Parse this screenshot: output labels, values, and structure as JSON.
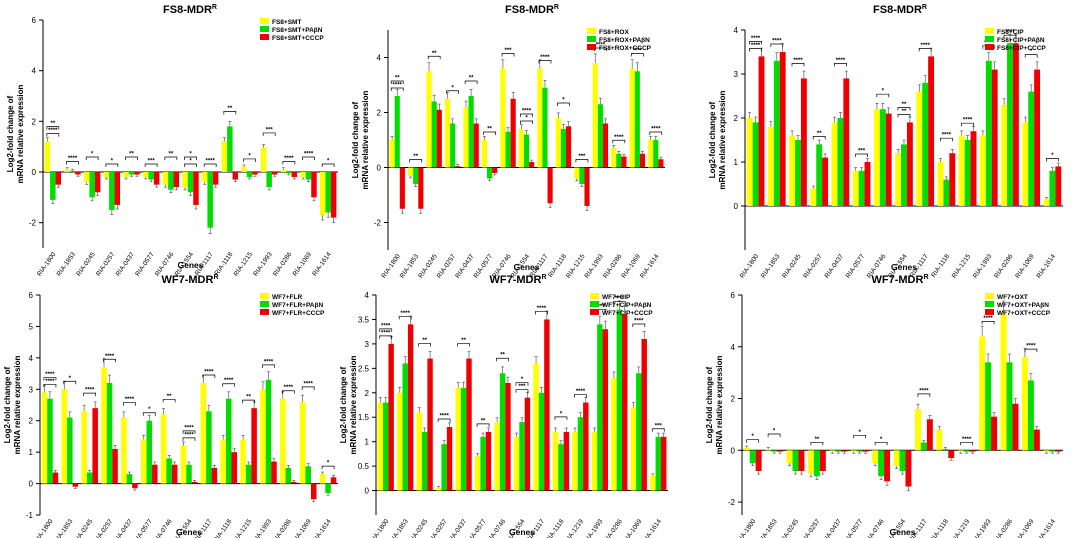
{
  "figure": {
    "panel_count": 6,
    "colors": {
      "yellow": "#FFFF00",
      "green": "#00DD00",
      "red": "#EE0000",
      "axis": "#000000"
    }
  },
  "chart_data": [
    {
      "type": "bar",
      "title": "FS8-MDR",
      "title_superscript": "R",
      "ylabel": [
        "Log2-fold change of",
        "mRNA relative expression"
      ],
      "xlabel": "Genes",
      "ylim": [
        -3,
        6
      ],
      "yticks": [
        -2,
        0,
        2,
        4,
        6
      ],
      "legend": "top-right",
      "categories": [
        "RIA-1800",
        "RIA-1853",
        "RIA-0245",
        "RIA-0257",
        "RIA-0437",
        "RIA-0577",
        "RIA-0746",
        "RIA-1554",
        "RIA-1117",
        "RIA-1118",
        "RIA-1215",
        "RIA-1993",
        "RIA-0286",
        "RIA-1069",
        "RIA-1614"
      ],
      "series": [
        {
          "name": "FS8+SMT",
          "values": [
            1.2,
            0.1,
            -0.4,
            -0.2,
            -0.2,
            -0.2,
            -0.5,
            -0.6,
            -0.4,
            1.2,
            0.2,
            0.95,
            0.1,
            -0.2,
            -1.7
          ]
        },
        {
          "name": "FS8+SMT+PAβN",
          "values": [
            -1.1,
            0.05,
            -1.0,
            -1.5,
            -0.1,
            -0.3,
            -0.7,
            -0.8,
            -2.2,
            1.8,
            -0.2,
            -0.6,
            -0.05,
            -0.3,
            -1.6
          ]
        },
        {
          "name": "FS8+SMT+CCCP",
          "values": [
            -0.5,
            -0.1,
            -0.8,
            -1.3,
            -0.1,
            -0.5,
            -0.6,
            -1.3,
            -0.5,
            -0.3,
            -0.1,
            -0.1,
            -0.2,
            -1.0,
            -1.8
          ]
        }
      ],
      "annotations": [
        "****",
        "**",
        "****",
        "*",
        "*",
        "**",
        "***",
        "**",
        "*",
        "*",
        "****",
        "**",
        "*",
        "***",
        "****",
        "****",
        "*"
      ]
    },
    {
      "type": "bar",
      "title": "FS8-MDR",
      "title_superscript": "R",
      "ylabel": [
        "Log2-fold change of",
        "mRNA relative expression"
      ],
      "xlabel": "Genes",
      "ylim": [
        -3,
        5
      ],
      "yticks": [
        -2,
        0,
        2,
        4
      ],
      "legend": "top-right",
      "categories": [
        "RIA-1800",
        "RIA-1853",
        "RIA-0245",
        "RIA-0257",
        "RIA-0437",
        "RIA-0577",
        "RIA-0746",
        "RIA-1554",
        "RIA-1117",
        "RIA-1118",
        "RIA-1215",
        "RIA-1993",
        "RIA-0286",
        "RIA-1069",
        "RIA-1614"
      ],
      "series": [
        {
          "name": "FS8+ROX",
          "values": [
            1.0,
            -0.3,
            3.5,
            2.5,
            2.2,
            1.0,
            3.6,
            1.4,
            3.6,
            1.8,
            -0.4,
            3.8,
            0.7,
            3.6,
            1.0
          ]
        },
        {
          "name": "FS8+ROX+PAβN",
          "values": [
            2.6,
            -0.6,
            2.4,
            1.6,
            2.6,
            -0.4,
            1.3,
            1.2,
            2.9,
            1.4,
            -0.6,
            2.3,
            0.5,
            3.5,
            1.0
          ]
        },
        {
          "name": "FS8+ROX+CCCP",
          "values": [
            -1.5,
            -1.5,
            2.1,
            0.05,
            1.6,
            -0.2,
            2.5,
            0.2,
            -1.3,
            1.5,
            -1.4,
            1.6,
            0.4,
            0.5,
            0.3
          ]
        }
      ],
      "annotations": [
        "****",
        "**",
        "**",
        "**",
        "*",
        "**",
        "**",
        "***",
        "*",
        "****",
        "****",
        "*",
        "***",
        "****",
        "****",
        "****",
        "****"
      ]
    },
    {
      "type": "bar",
      "title": "FS8-MDR",
      "title_superscript": "R",
      "ylabel": [
        "Log2-fold change of",
        "mRNA relative expression"
      ],
      "xlabel": "Genes",
      "ylim": [
        -1,
        4
      ],
      "yticks": [
        0,
        1,
        2,
        3,
        4
      ],
      "legend": "top-right",
      "categories": [
        "RIA-1800",
        "RIA-1853",
        "RIA-0245",
        "RIA-0257",
        "RIA-0437",
        "RIA-0577",
        "RIA-0746",
        "RIA-1554",
        "RIA-1117",
        "RIA-1118",
        "RIA-1215",
        "RIA-1993",
        "RIA-0286",
        "RIA-1069",
        "RIA-1614"
      ],
      "series": [
        {
          "name": "FS8+CIP",
          "values": [
            2.0,
            1.8,
            1.6,
            0.4,
            1.9,
            0.8,
            2.2,
            1.2,
            2.6,
            1.0,
            1.6,
            1.6,
            2.3,
            1.9,
            0.15
          ]
        },
        {
          "name": "FS8+CIP+PAβN",
          "values": [
            1.9,
            3.3,
            1.5,
            1.4,
            2.0,
            0.8,
            2.2,
            1.4,
            2.8,
            0.6,
            1.5,
            3.3,
            3.7,
            2.6,
            0.8
          ]
        },
        {
          "name": "FS8+CIP+CCCP",
          "values": [
            3.4,
            3.5,
            2.9,
            1.1,
            2.9,
            1.0,
            2.1,
            1.9,
            3.4,
            1.2,
            1.7,
            3.1,
            3.7,
            3.1,
            0.9
          ]
        }
      ],
      "annotations": [
        "****",
        "****",
        "****",
        "****",
        "**",
        "****",
        "***",
        "*",
        "**",
        "**",
        "****",
        "****",
        "****",
        "****",
        "****",
        "*",
        "*"
      ]
    },
    {
      "type": "bar",
      "title": "WF7-MDR",
      "title_superscript": "R",
      "ylabel": [
        "Log2-fold change of",
        "mRNA relative expression"
      ],
      "xlabel": "Genes",
      "ylim": [
        -1,
        6
      ],
      "yticks": [
        -1,
        0,
        1,
        2,
        3,
        4,
        5,
        6
      ],
      "legend": "top-right",
      "categories": [
        "RIA-1800",
        "RIA-1853",
        "RIA-0245",
        "RIA-0257",
        "RIA-0437",
        "RIA-0577",
        "RIA-0746",
        "RIA-1554",
        "RIA-1117",
        "RIA-1118",
        "RIA-1215",
        "RIA-1993",
        "RIA-0286",
        "RIA-1069",
        "RIA-1614"
      ],
      "series": [
        {
          "name": "WF7+FLR",
          "values": [
            2.9,
            3.0,
            2.3,
            3.7,
            2.1,
            1.4,
            2.2,
            1.2,
            3.2,
            1.4,
            1.4,
            3.0,
            2.7,
            2.6,
            0.3
          ]
        },
        {
          "name": "WF7+FLR+PAβN",
          "values": [
            2.7,
            2.1,
            0.35,
            3.2,
            0.3,
            2.0,
            0.8,
            0.6,
            2.3,
            2.7,
            0.6,
            3.3,
            0.5,
            0.55,
            -0.3
          ]
        },
        {
          "name": "WF7+FLR+CCCP",
          "values": [
            0.35,
            -0.1,
            2.4,
            1.1,
            -0.15,
            0.6,
            0.6,
            0.05,
            0.5,
            1.0,
            2.4,
            0.7,
            0.05,
            -0.5,
            0.2
          ]
        }
      ],
      "annotations": [
        "****",
        "****",
        "*",
        "****",
        "****",
        "****",
        "*",
        "**",
        "****",
        "****",
        "****",
        "****",
        "**",
        "****",
        "****",
        "****",
        "*"
      ]
    },
    {
      "type": "bar",
      "title": "WF7-MDR",
      "title_superscript": "R",
      "ylabel": [
        "Log2-fold change of",
        "mRNA relative expression"
      ],
      "xlabel": "Genes",
      "ylim": [
        -0.5,
        4
      ],
      "yticks": [
        0,
        0.5,
        1,
        1.5,
        2,
        2.5,
        3,
        3.5,
        4
      ],
      "legend": "top-right",
      "categories": [
        "RIA-1800",
        "RIA-1853",
        "RIA-0245",
        "RIA-0257",
        "RIA-0437",
        "RIA-0577",
        "RIA-0746",
        "RIA-1554",
        "RIA-1117",
        "RIA-1118",
        "RIA-1219",
        "RIA-1993",
        "RIA-0286",
        "RIA-1069",
        "RIA-1614"
      ],
      "series": [
        {
          "name": "WF7+CIP",
          "values": [
            1.8,
            2.0,
            1.6,
            0.05,
            2.1,
            0.7,
            1.4,
            1.1,
            2.6,
            1.2,
            1.2,
            1.2,
            2.3,
            1.7,
            0.3
          ]
        },
        {
          "name": "WF7+CIP+PAβN",
          "values": [
            1.8,
            2.6,
            1.2,
            0.95,
            2.1,
            1.1,
            2.4,
            1.4,
            2.0,
            0.95,
            1.5,
            3.4,
            3.7,
            2.4,
            1.1
          ]
        },
        {
          "name": "WF7+CIP+CCCP",
          "values": [
            3.0,
            3.4,
            2.7,
            1.3,
            2.7,
            1.2,
            2.2,
            1.9,
            3.5,
            1.2,
            1.8,
            3.3,
            3.6,
            3.1,
            1.1
          ]
        }
      ],
      "annotations": [
        "****",
        "****",
        "****",
        "**",
        "****",
        "**",
        "**",
        "**",
        "***",
        "*",
        "****",
        "*",
        "****",
        "****",
        "****",
        "****",
        "***"
      ]
    },
    {
      "type": "bar",
      "title": "WF7-MDR",
      "title_superscript": "R",
      "ylabel": [
        "Log2-fold change of",
        "mRNA relative expression"
      ],
      "xlabel": "Genes",
      "ylim": [
        -2.5,
        6
      ],
      "yticks": [
        -2,
        0,
        2,
        4,
        6
      ],
      "legend": "top-right",
      "categories": [
        "RIA-1800",
        "RIA-1853",
        "RIA-0245",
        "RIA-0257",
        "RIA-0437",
        "RIA-0577",
        "RIA-0746",
        "RIA-1554",
        "RIA-1117",
        "RIA-1118",
        "RIA-1219",
        "RIA-1993",
        "RIA-0286",
        "RIA-1069",
        "RIA-1614"
      ],
      "series": [
        {
          "name": "WF7+OXT",
          "values": [
            0.1,
            0.05,
            -0.5,
            -0.9,
            -0.05,
            -0.05,
            -0.5,
            -0.6,
            1.6,
            0.8,
            -0.05,
            4.4,
            5.3,
            3.6,
            -0.05
          ]
        },
        {
          "name": "WF7+OXT+PAβN",
          "values": [
            -0.5,
            -0.05,
            -0.8,
            -1.0,
            -0.05,
            -0.05,
            -1.0,
            -0.8,
            0.3,
            0.05,
            -0.05,
            3.4,
            3.4,
            2.7,
            -0.05
          ]
        },
        {
          "name": "WF7+OXT+CCCP",
          "values": [
            -0.8,
            -0.05,
            -0.8,
            -0.8,
            -0.05,
            -0.05,
            -1.2,
            -1.4,
            1.2,
            -0.3,
            -0.05,
            1.3,
            1.8,
            0.8,
            -0.05
          ]
        }
      ],
      "annotations": [
        "*",
        "*",
        "**",
        "*",
        "*",
        "****",
        "****",
        "****",
        "****"
      ]
    }
  ]
}
